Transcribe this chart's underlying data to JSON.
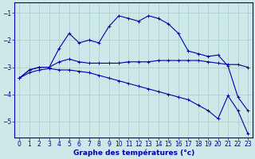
{
  "title": "Graphe des températures (°c)",
  "background_color": "#cce8e8",
  "grid_color": "#aacccc",
  "line_color": "#0000aa",
  "xlim": [
    -0.5,
    23.5
  ],
  "ylim": [
    -5.6,
    -0.6
  ],
  "xticks": [
    0,
    1,
    2,
    3,
    4,
    5,
    6,
    7,
    8,
    9,
    10,
    11,
    12,
    13,
    14,
    15,
    16,
    17,
    18,
    19,
    20,
    21,
    22,
    23
  ],
  "yticks": [
    -5,
    -4,
    -3,
    -2,
    -1
  ],
  "line1_x": [
    0,
    1,
    2,
    3,
    4,
    5,
    6,
    7,
    8,
    9,
    10,
    11,
    12,
    13,
    14,
    15,
    16,
    17,
    18,
    19,
    20,
    21,
    22,
    23
  ],
  "line1_y": [
    -3.4,
    -3.1,
    -3.0,
    -3.0,
    -2.3,
    -1.75,
    -2.1,
    -2.0,
    -2.1,
    -1.5,
    -1.1,
    -1.2,
    -1.3,
    -1.1,
    -1.2,
    -1.4,
    -1.75,
    -2.4,
    -2.5,
    -2.6,
    -2.55,
    -2.95,
    -4.1,
    -4.6
  ],
  "line2_x": [
    0,
    1,
    2,
    3,
    4,
    5,
    6,
    7,
    8,
    9,
    10,
    11,
    12,
    13,
    14,
    15,
    16,
    17,
    18,
    19,
    20,
    21,
    22,
    23
  ],
  "line2_y": [
    -3.4,
    -3.1,
    -3.0,
    -3.0,
    -2.8,
    -2.7,
    -2.8,
    -2.85,
    -2.85,
    -2.85,
    -2.85,
    -2.8,
    -2.8,
    -2.8,
    -2.75,
    -2.75,
    -2.75,
    -2.75,
    -2.75,
    -2.8,
    -2.85,
    -2.9,
    -2.9,
    -3.0
  ],
  "line3_x": [
    0,
    1,
    2,
    3,
    4,
    5,
    6,
    7,
    8,
    9,
    10,
    11,
    12,
    13,
    14,
    15,
    16,
    17,
    18,
    19,
    20,
    21,
    22,
    23
  ],
  "line3_y": [
    -3.4,
    -3.2,
    -3.1,
    -3.05,
    -3.1,
    -3.1,
    -3.15,
    -3.2,
    -3.3,
    -3.4,
    -3.5,
    -3.6,
    -3.7,
    -3.8,
    -3.9,
    -4.0,
    -4.1,
    -4.2,
    -4.4,
    -4.6,
    -4.9,
    -4.05,
    -4.6,
    -5.45
  ],
  "xlabel_fontsize": 6.5,
  "tick_fontsize": 5.5
}
